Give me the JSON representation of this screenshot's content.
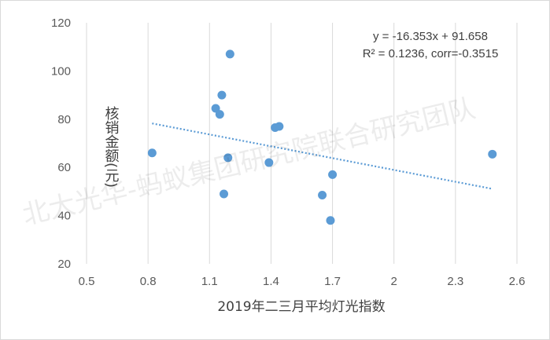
{
  "chart_data": {
    "type": "scatter",
    "title": "",
    "xlabel": "2019年二三月平均灯光指数",
    "ylabel": "核销金额(元)",
    "xlim": [
      0.5,
      2.6
    ],
    "ylim": [
      20,
      120
    ],
    "xticks": [
      "0.5",
      "0.8",
      "1.1",
      "1.4",
      "1.7",
      "2",
      "2.3",
      "2.6"
    ],
    "xtick_values": [
      0.5,
      0.8,
      1.1,
      1.4,
      1.7,
      2.0,
      2.3,
      2.6
    ],
    "yticks": [
      "20",
      "40",
      "60",
      "80",
      "100",
      "120"
    ],
    "ytick_values": [
      20,
      40,
      60,
      80,
      100,
      120
    ],
    "grid": "vertical",
    "points": [
      {
        "x": 0.82,
        "y": 66
      },
      {
        "x": 1.13,
        "y": 84.5
      },
      {
        "x": 1.16,
        "y": 90
      },
      {
        "x": 1.2,
        "y": 107
      },
      {
        "x": 1.15,
        "y": 82
      },
      {
        "x": 1.19,
        "y": 64
      },
      {
        "x": 1.17,
        "y": 49
      },
      {
        "x": 1.39,
        "y": 62
      },
      {
        "x": 1.42,
        "y": 76.5
      },
      {
        "x": 1.44,
        "y": 77
      },
      {
        "x": 1.7,
        "y": 57
      },
      {
        "x": 1.65,
        "y": 48.5
      },
      {
        "x": 1.69,
        "y": 38
      },
      {
        "x": 2.48,
        "y": 65.5
      }
    ],
    "trendline": {
      "slope": -16.353,
      "intercept": 91.658,
      "x_range": [
        0.82,
        2.48
      ],
      "style": "dotted"
    },
    "annotation": [
      "y = -16.353x + 91.658",
      "R² = 0.1236, corr=-0.3515"
    ],
    "colors": {
      "points": "#5b9bd5",
      "trendline": "#5b9bd5",
      "grid": "#d9d9d9"
    }
  },
  "watermark": "北大光华-蚂蚁集团研究院联合研究团队"
}
